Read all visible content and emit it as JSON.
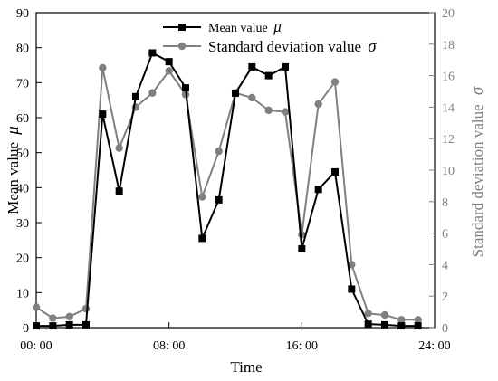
{
  "chart_data": {
    "type": "line",
    "xlabel": "Time",
    "ylabel_left": "Mean value",
    "ylabel_left_symbol": "μ",
    "ylabel_right": "Standard deviation value",
    "ylabel_right_symbol": "σ",
    "x_tick_labels": [
      "00: 00",
      "08: 00",
      "16: 00",
      "24: 00"
    ],
    "x_ticks": [
      0,
      8,
      16,
      24
    ],
    "xlim": [
      0,
      24
    ],
    "ylim_left": [
      0,
      90
    ],
    "yticks_left": [
      0,
      10,
      20,
      30,
      40,
      50,
      60,
      70,
      80,
      90
    ],
    "ylim_right": [
      0,
      20
    ],
    "yticks_right": [
      0,
      2,
      4,
      6,
      8,
      10,
      12,
      14,
      16,
      18,
      20
    ],
    "legend_position": "top-center",
    "grid": false,
    "series": [
      {
        "name": "Mean value",
        "symbol": "μ",
        "axis": "left",
        "color": "#000000",
        "marker": "square",
        "x": [
          0,
          1,
          2,
          3,
          4,
          5,
          6,
          7,
          8,
          9,
          10,
          11,
          12,
          13,
          14,
          15,
          16,
          17,
          18,
          19,
          20,
          21,
          22,
          23
        ],
        "values": [
          0.5,
          0.5,
          0.8,
          0.8,
          61,
          39,
          66,
          78.5,
          76,
          68.5,
          25.5,
          36.5,
          67,
          74.5,
          72,
          74.5,
          22.5,
          39.5,
          44.5,
          11,
          1,
          0.8,
          0.5,
          0.5
        ]
      },
      {
        "name": "Standard deviation value",
        "symbol": "σ",
        "axis": "right",
        "color": "#808080",
        "marker": "circle",
        "x": [
          0,
          1,
          2,
          3,
          4,
          5,
          6,
          7,
          8,
          9,
          10,
          11,
          12,
          13,
          14,
          15,
          16,
          17,
          18,
          19,
          20,
          21,
          22,
          23
        ],
        "values": [
          1.3,
          0.6,
          0.7,
          1.2,
          16.5,
          11.4,
          14,
          14.9,
          16.3,
          14.8,
          8.3,
          11.2,
          14.9,
          14.6,
          13.8,
          13.7,
          5.9,
          14.2,
          15.6,
          4,
          0.9,
          0.8,
          0.5,
          0.5
        ]
      }
    ]
  }
}
